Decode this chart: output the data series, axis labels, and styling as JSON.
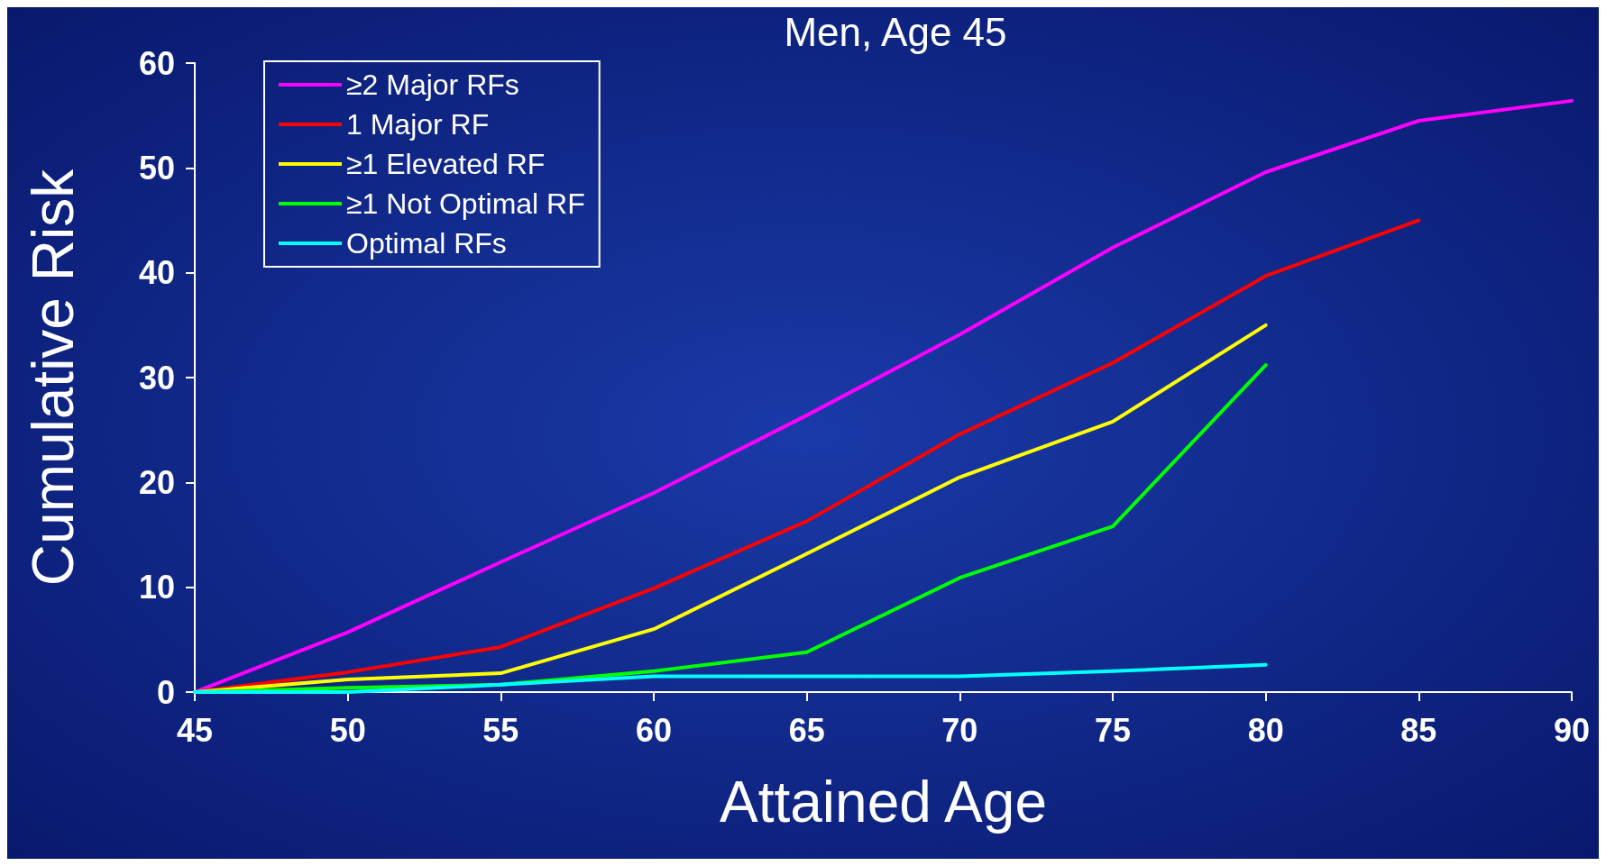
{
  "chart_data": {
    "type": "line",
    "title": "Men, Age 45",
    "xlabel": "Attained Age",
    "ylabel": "Cumulative Risk",
    "x": [
      45,
      50,
      55,
      60,
      65,
      70,
      75,
      80,
      85,
      90
    ],
    "series": [
      {
        "name": "≥2 Major RFs",
        "color": "#ff00ff",
        "values": [
          0,
          5.7,
          12.4,
          19.0,
          26.4,
          34.1,
          42.4,
          49.6,
          54.5,
          56.4
        ]
      },
      {
        "name": "1 Major RF",
        "color": "#ff0000",
        "values": [
          0,
          1.9,
          4.3,
          9.9,
          16.3,
          24.6,
          31.4,
          39.7,
          45.0,
          null
        ]
      },
      {
        "name": "≥1 Elevated RF",
        "color": "#ffff00",
        "values": [
          0,
          1.2,
          1.8,
          6.0,
          13.2,
          20.5,
          25.8,
          35.0,
          null,
          null
        ]
      },
      {
        "name": "≥1 Not Optimal RF",
        "color": "#00ff00",
        "values": [
          0,
          0.4,
          0.7,
          2.0,
          3.8,
          10.9,
          15.8,
          31.2,
          null,
          null
        ]
      },
      {
        "name": "Optimal RFs",
        "color": "#00ffff",
        "values": [
          0,
          0,
          0.7,
          1.5,
          1.5,
          1.5,
          2.0,
          2.6,
          null,
          null
        ]
      }
    ],
    "xlim": [
      45,
      90
    ],
    "xticks": [
      45,
      50,
      55,
      60,
      65,
      70,
      75,
      80,
      85,
      90
    ],
    "ylim": [
      0,
      60
    ],
    "yticks": [
      0,
      10,
      20,
      30,
      40,
      50,
      60
    ],
    "grid": false,
    "legend": "top left",
    "marker": "none",
    "line_style": "solid"
  }
}
